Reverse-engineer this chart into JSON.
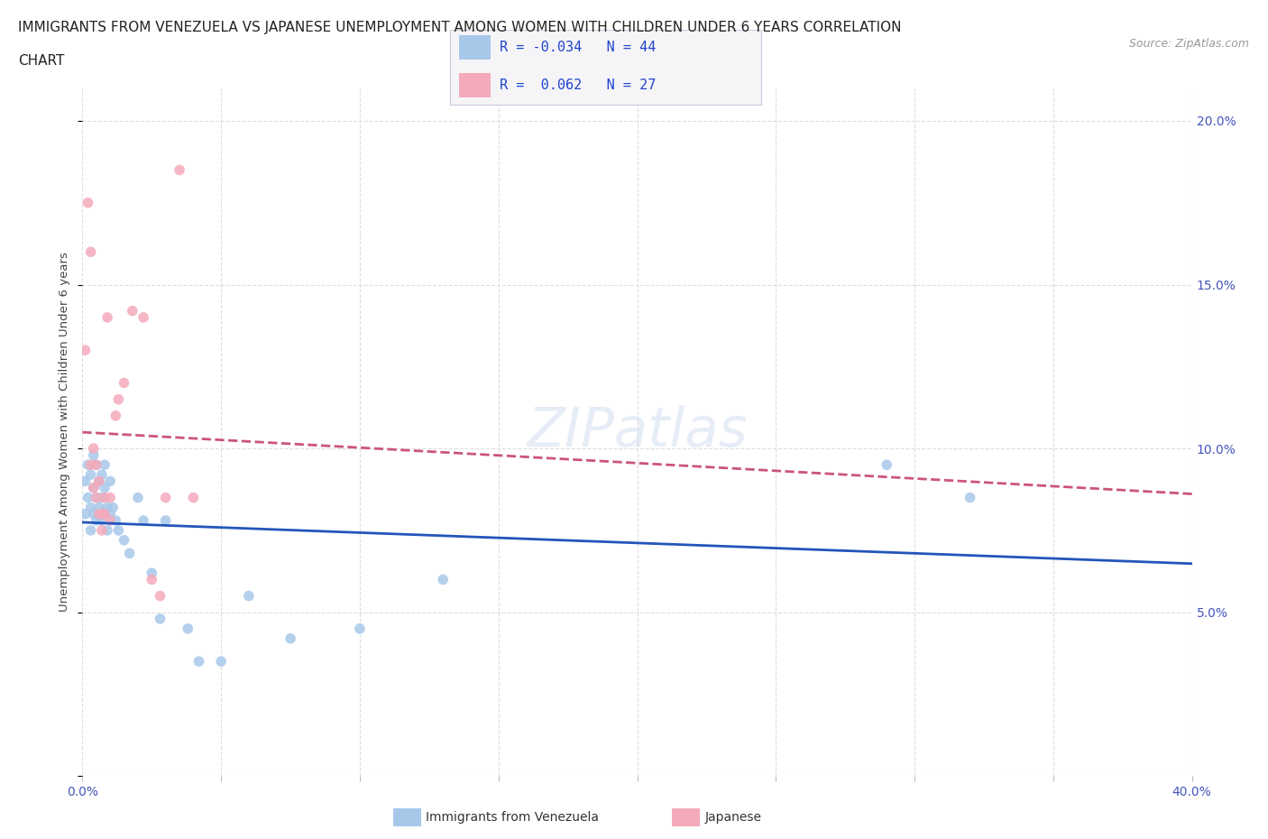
{
  "title_line1": "IMMIGRANTS FROM VENEZUELA VS JAPANESE UNEMPLOYMENT AMONG WOMEN WITH CHILDREN UNDER 6 YEARS CORRELATION",
  "title_line2": "CHART",
  "source": "Source: ZipAtlas.com",
  "ylabel": "Unemployment Among Women with Children Under 6 years",
  "xlim": [
    0.0,
    0.4
  ],
  "ylim": [
    0.0,
    0.21
  ],
  "xticks": [
    0.0,
    0.05,
    0.1,
    0.15,
    0.2,
    0.25,
    0.3,
    0.35,
    0.4
  ],
  "yticks": [
    0.0,
    0.05,
    0.1,
    0.15,
    0.2
  ],
  "color_blue": "#A8C8EA",
  "color_pink": "#F4AABB",
  "line_blue": "#2255BB",
  "line_pink": "#CC5577",
  "watermark": "ZIPatlas",
  "blue_scatter_x": [
    0.001,
    0.001,
    0.002,
    0.002,
    0.003,
    0.003,
    0.003,
    0.004,
    0.004,
    0.004,
    0.005,
    0.005,
    0.005,
    0.006,
    0.006,
    0.007,
    0.007,
    0.007,
    0.008,
    0.008,
    0.008,
    0.009,
    0.009,
    0.01,
    0.01,
    0.011,
    0.012,
    0.013,
    0.015,
    0.017,
    0.02,
    0.022,
    0.025,
    0.028,
    0.03,
    0.038,
    0.042,
    0.05,
    0.06,
    0.075,
    0.1,
    0.13,
    0.29,
    0.32
  ],
  "blue_scatter_y": [
    0.08,
    0.09,
    0.085,
    0.095,
    0.075,
    0.082,
    0.092,
    0.08,
    0.088,
    0.098,
    0.078,
    0.085,
    0.095,
    0.082,
    0.09,
    0.078,
    0.085,
    0.092,
    0.08,
    0.088,
    0.095,
    0.075,
    0.082,
    0.08,
    0.09,
    0.082,
    0.078,
    0.075,
    0.072,
    0.068,
    0.085,
    0.078,
    0.062,
    0.048,
    0.078,
    0.045,
    0.035,
    0.035,
    0.055,
    0.042,
    0.045,
    0.06,
    0.095,
    0.085
  ],
  "pink_scatter_x": [
    0.001,
    0.002,
    0.003,
    0.003,
    0.004,
    0.004,
    0.005,
    0.005,
    0.006,
    0.006,
    0.007,
    0.007,
    0.008,
    0.008,
    0.009,
    0.01,
    0.01,
    0.012,
    0.013,
    0.015,
    0.018,
    0.022,
    0.025,
    0.028,
    0.03,
    0.035,
    0.04
  ],
  "pink_scatter_y": [
    0.13,
    0.175,
    0.16,
    0.095,
    0.1,
    0.088,
    0.095,
    0.085,
    0.08,
    0.09,
    0.08,
    0.075,
    0.085,
    0.08,
    0.14,
    0.078,
    0.085,
    0.11,
    0.115,
    0.12,
    0.142,
    0.14,
    0.06,
    0.055,
    0.085,
    0.185,
    0.085
  ],
  "background_color": "#FFFFFF",
  "grid_color": "#DDDDDD",
  "grid_style": "--"
}
